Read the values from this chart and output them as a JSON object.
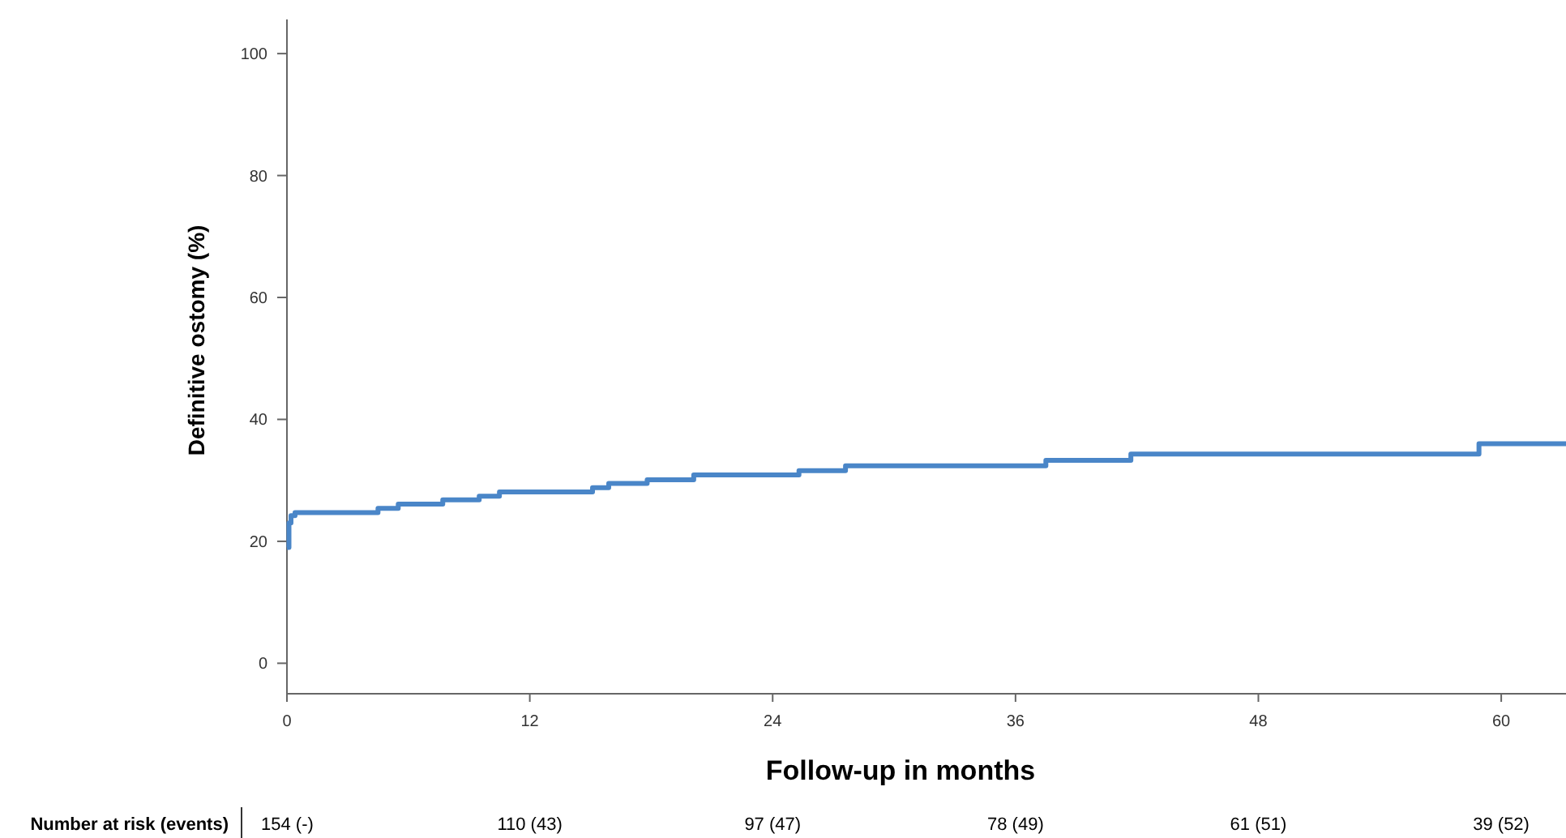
{
  "chart_data": {
    "type": "step",
    "xlabel": "Follow-up in months",
    "ylabel": "Definitive ostomy (%)",
    "xlim": [
      0,
      63.2
    ],
    "ylim": [
      -5,
      105.6
    ],
    "xticks": [
      0,
      12,
      24,
      36,
      48,
      60
    ],
    "yticks": [
      0,
      20,
      40,
      60,
      80,
      100
    ],
    "grid": false,
    "line_style": "solid",
    "series": [
      {
        "color": "#4a86c8",
        "x": [
          0,
          0.1,
          0.2,
          0.4,
          4.5,
          5.5,
          7.7,
          9.5,
          10.5,
          15.1,
          15.9,
          17.8,
          20.1,
          25.3,
          27.6,
          37.5,
          41.7,
          58.9,
          63.2
        ],
        "values": [
          19,
          23,
          24.2,
          24.7,
          25.4,
          26.1,
          26.8,
          27.4,
          28.1,
          28.8,
          29.5,
          30.1,
          30.9,
          31.6,
          32.4,
          33.3,
          34.3,
          36.0,
          36.0
        ]
      }
    ],
    "annotations": [
      "Number at risk (events)",
      "154 (-)",
      "110 (43)",
      "97 (47)",
      "78 (49)",
      "61 (51)",
      "39 (52)"
    ]
  }
}
